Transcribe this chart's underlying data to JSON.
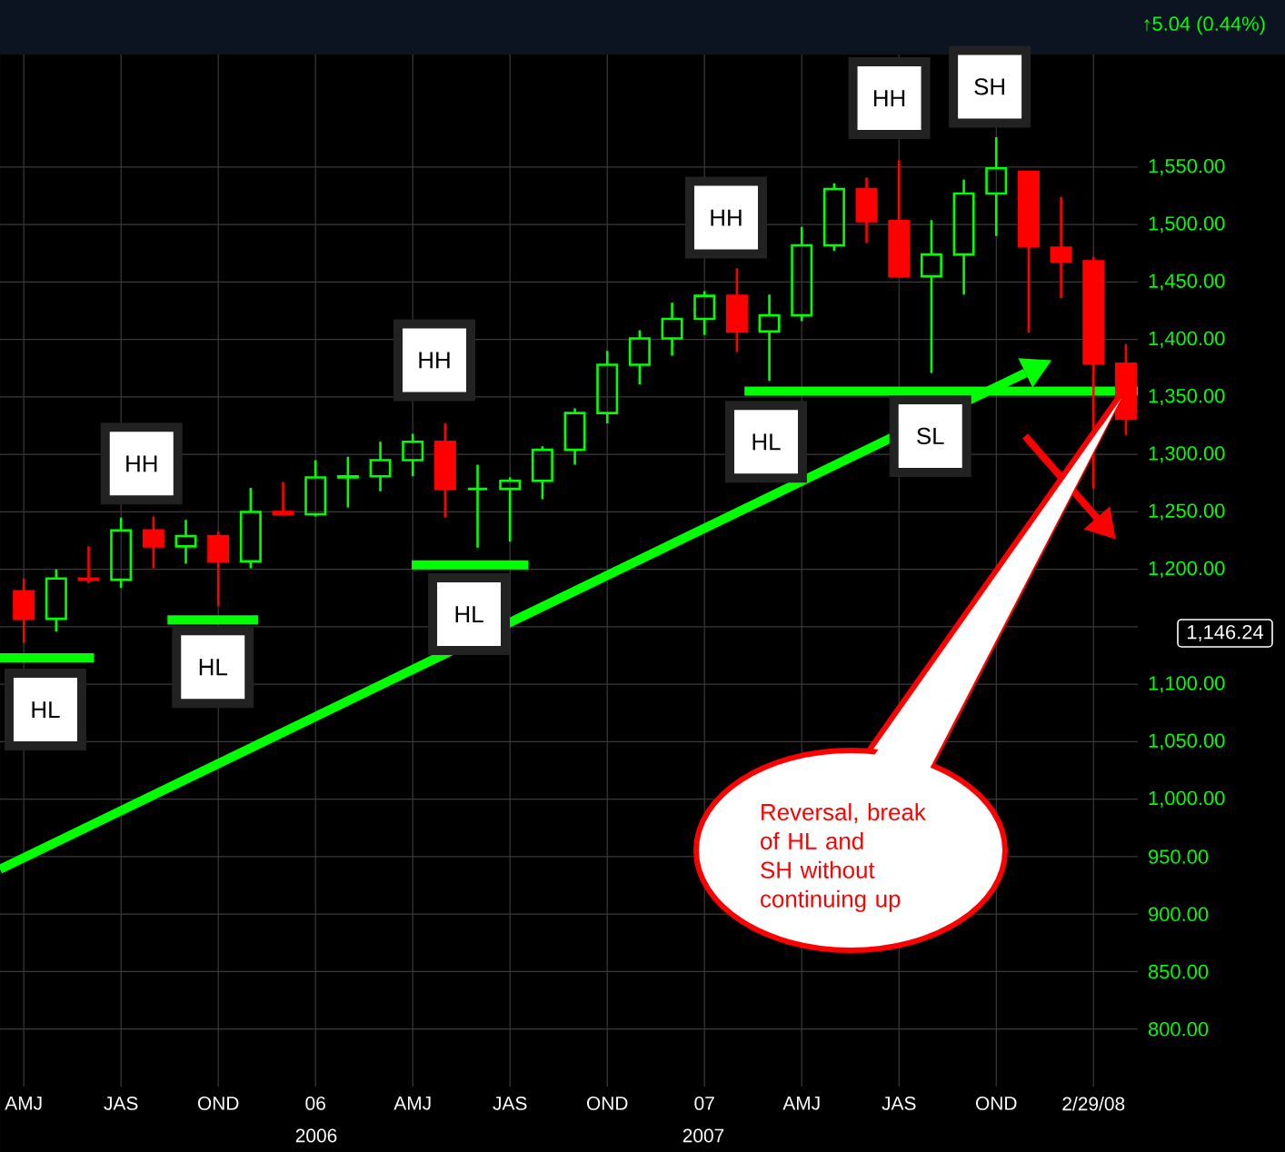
{
  "chart_data": {
    "type": "candlestick",
    "x": [
      "2005-04",
      "2005-05",
      "2005-06",
      "2005-07",
      "2005-08",
      "2005-09",
      "2005-10",
      "2005-11",
      "2005-12",
      "2006-01",
      "2006-02",
      "2006-03",
      "2006-04",
      "2006-05",
      "2006-06",
      "2006-07",
      "2006-08",
      "2006-09",
      "2006-10",
      "2006-11",
      "2006-12",
      "2007-01",
      "2007-02",
      "2007-03",
      "2007-04",
      "2007-05",
      "2007-06",
      "2007-07",
      "2007-08",
      "2007-09",
      "2007-10",
      "2007-11",
      "2007-12",
      "2008-01",
      "2008-02"
    ],
    "ohlc": [
      [
        1181,
        1192,
        1136,
        1157
      ],
      [
        1157,
        1200,
        1146,
        1192
      ],
      [
        1192,
        1220,
        1188,
        1191
      ],
      [
        1191,
        1245,
        1184,
        1234
      ],
      [
        1234,
        1246,
        1201,
        1220
      ],
      [
        1220,
        1243,
        1205,
        1229
      ],
      [
        1229,
        1233,
        1168,
        1207
      ],
      [
        1207,
        1271,
        1201,
        1250
      ],
      [
        1250,
        1276,
        1247,
        1248
      ],
      [
        1248,
        1295,
        1246,
        1280
      ],
      [
        1280,
        1298,
        1254,
        1281
      ],
      [
        1281,
        1311,
        1268,
        1295
      ],
      [
        1295,
        1318,
        1281,
        1311
      ],
      [
        1311,
        1327,
        1245,
        1270
      ],
      [
        1270,
        1291,
        1219,
        1270
      ],
      [
        1270,
        1280,
        1224,
        1277
      ],
      [
        1277,
        1307,
        1261,
        1304
      ],
      [
        1304,
        1340,
        1291,
        1336
      ],
      [
        1336,
        1390,
        1327,
        1378
      ],
      [
        1378,
        1408,
        1361,
        1401
      ],
      [
        1401,
        1432,
        1386,
        1418
      ],
      [
        1418,
        1442,
        1404,
        1438
      ],
      [
        1438,
        1462,
        1389,
        1407
      ],
      [
        1407,
        1439,
        1364,
        1421
      ],
      [
        1421,
        1498,
        1416,
        1482
      ],
      [
        1482,
        1536,
        1477,
        1531
      ],
      [
        1531,
        1541,
        1484,
        1503
      ],
      [
        1503,
        1556,
        1454,
        1455
      ],
      [
        1455,
        1504,
        1371,
        1474
      ],
      [
        1474,
        1539,
        1439,
        1527
      ],
      [
        1527,
        1576,
        1490,
        1549
      ],
      [
        1546,
        1546,
        1406,
        1481
      ],
      [
        1480,
        1524,
        1436,
        1468
      ],
      [
        1468,
        1472,
        1270,
        1379
      ],
      [
        1379,
        1396,
        1317,
        1331
      ]
    ],
    "colors": [
      "#ff0000",
      "#00ff00",
      "#ff0000",
      "#00ff00",
      "#ff0000",
      "#00ff00",
      "#ff0000",
      "#00ff00",
      "#ff0000",
      "#00ff00",
      "#00ff00",
      "#00ff00",
      "#00ff00",
      "#ff0000",
      "#00ff00",
      "#00ff00",
      "#00ff00",
      "#00ff00",
      "#00ff00",
      "#00ff00",
      "#00ff00",
      "#00ff00",
      "#ff0000",
      "#00ff00",
      "#00ff00",
      "#00ff00",
      "#ff0000",
      "#ff0000",
      "#00ff00",
      "#00ff00",
      "#00ff00",
      "#ff0000",
      "#ff0000",
      "#ff0000",
      "#ff0000"
    ],
    "series": [
      {
        "type": "line",
        "color": "#00ff00",
        "x": [
          "2005-03-09",
          "2007-10-28"
        ],
        "values": [
          939,
          1371
        ]
      },
      {
        "type": "line",
        "color": "#00ff00",
        "x": [
          "2005-03-09",
          "2005-06-06"
        ],
        "values": [
          1123,
          1123
        ]
      },
      {
        "type": "line",
        "color": "#00ff00",
        "x": [
          "2005-08-14",
          "2005-11-08"
        ],
        "values": [
          1156,
          1156
        ]
      },
      {
        "type": "line",
        "color": "#00ff00",
        "x": [
          "2006-03-30",
          "2006-07-18"
        ],
        "values": [
          1204,
          1204
        ]
      },
      {
        "type": "line",
        "color": "#00ff00",
        "x": [
          "2007-02-08",
          "2008-02-12"
        ],
        "values": [
          1355,
          1355
        ]
      }
    ],
    "xlim": [
      "2005-03-09",
      "2008-02-12"
    ],
    "ylim": [
      750,
      1648
    ],
    "xticks": [
      {
        "value": "2005-04",
        "label": "AMJ"
      },
      {
        "value": "2005-07",
        "label": "JAS"
      },
      {
        "value": "2005-10",
        "label": "OND"
      },
      {
        "value": "2006-01",
        "label": "06"
      },
      {
        "value": "2006-04",
        "label": "AMJ"
      },
      {
        "value": "2006-07",
        "label": "JAS"
      },
      {
        "value": "2006-10",
        "label": "OND"
      },
      {
        "value": "2007-01",
        "label": "07"
      },
      {
        "value": "2007-04",
        "label": "AMJ"
      },
      {
        "value": "2007-07",
        "label": "JAS"
      },
      {
        "value": "2007-10",
        "label": "OND"
      },
      {
        "value": "2008-01",
        "label": "2/29/08"
      }
    ],
    "yticks": [
      {
        "value": 800,
        "label": "800.00"
      },
      {
        "value": 850,
        "label": "850.00"
      },
      {
        "value": 900,
        "label": "900.00"
      },
      {
        "value": 950,
        "label": "950.00"
      },
      {
        "value": 1000,
        "label": "1,000.00"
      },
      {
        "value": 1050,
        "label": "1,050.00"
      },
      {
        "value": 1100,
        "label": "1,100.00"
      },
      {
        "value": 1150,
        "label": null
      },
      {
        "value": 1200,
        "label": "1,200.00"
      },
      {
        "value": 1250,
        "label": "1,250.00"
      },
      {
        "value": 1300,
        "label": "1,300.00"
      },
      {
        "value": 1350,
        "label": "1,350.00"
      },
      {
        "value": 1400,
        "label": "1,400.00"
      },
      {
        "value": 1450,
        "label": "1,450.00"
      },
      {
        "value": 1500,
        "label": "1,500.00"
      },
      {
        "value": 1550,
        "label": "1,550.00"
      }
    ],
    "grid": true,
    "annotations": [
      "↑5.04 (0.44%)",
      "Reversal, break of HL and SH without continuing up",
      {
        "text": "HL",
        "x": "2005-04-21",
        "y": 1078
      },
      {
        "text": "HH",
        "x": "2005-07-20",
        "y": 1292
      },
      {
        "text": "HL",
        "x": "2005-09-26",
        "y": 1115
      },
      {
        "text": "HH",
        "x": "2006-04-21",
        "y": 1382
      },
      {
        "text": "HL",
        "x": "2006-05-23",
        "y": 1161
      },
      {
        "text": "HH",
        "x": "2007-01-21",
        "y": 1506
      },
      {
        "text": "HL",
        "x": "2007-02-28",
        "y": 1311
      },
      {
        "text": "HH",
        "x": "2007-06-22",
        "y": 1610
      },
      {
        "text": "SH",
        "x": "2007-09-25",
        "y": 1620
      },
      {
        "text": "SL",
        "x": "2007-07-30",
        "y": 1316
      },
      "2006",
      "2007",
      "1,146.24"
    ]
  }
}
